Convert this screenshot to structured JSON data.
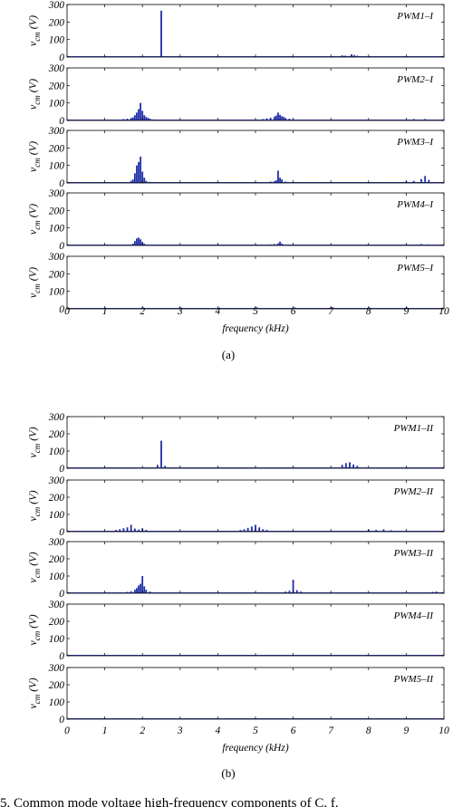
{
  "figure": {
    "caption_a": "(a)",
    "caption_b": "(b)",
    "footer_fragment": "5.   Common mode voltage high-frequency components of C. f."
  },
  "chart_data": [
    {
      "type": "bar",
      "group": "a",
      "xlabel": "frequency (kHz)",
      "xlim": [
        0,
        10
      ],
      "xticks": [
        "0",
        "1",
        "2",
        "3",
        "4",
        "5",
        "6",
        "7",
        "8",
        "9",
        "10"
      ],
      "ylim": [
        0,
        300
      ],
      "yticks": [
        "0",
        "100",
        "200",
        "300"
      ],
      "grid": false,
      "panels": [
        {
          "label": "PWM1–I",
          "ylabel": "v",
          "ylabel_sub": "cm",
          "ylabel_unit": "(V)",
          "x": [
            2.38,
            2.5,
            2.62,
            7.3,
            7.38,
            7.5,
            7.55,
            7.62,
            7.7
          ],
          "values": [
            4,
            265,
            4,
            10,
            8,
            6,
            16,
            12,
            8
          ]
        },
        {
          "label": "PWM2–I",
          "ylabel": "v",
          "ylabel_sub": "cm",
          "ylabel_unit": "(V)",
          "x": [
            1.5,
            1.6,
            1.7,
            1.75,
            1.8,
            1.85,
            1.9,
            1.95,
            2.0,
            2.05,
            2.1,
            2.15,
            2.2,
            2.3,
            5.2,
            5.3,
            5.4,
            5.5,
            5.55,
            5.6,
            5.65,
            5.7,
            5.75,
            5.8,
            5.9,
            6.0,
            9.2,
            9.5
          ],
          "values": [
            8,
            10,
            14,
            18,
            30,
            45,
            65,
            100,
            55,
            30,
            20,
            14,
            10,
            6,
            8,
            12,
            16,
            22,
            28,
            45,
            32,
            24,
            20,
            14,
            10,
            6,
            8,
            8
          ]
        },
        {
          "label": "PWM3–I",
          "ylabel": "v",
          "ylabel_sub": "cm",
          "ylabel_unit": "(V)",
          "x": [
            1.7,
            1.75,
            1.8,
            1.85,
            1.9,
            1.95,
            2.0,
            2.05,
            2.1,
            2.2,
            5.4,
            5.5,
            5.55,
            5.6,
            5.65,
            5.7,
            5.8,
            9.0,
            9.2,
            9.4,
            9.5,
            9.6
          ],
          "values": [
            12,
            20,
            55,
            100,
            120,
            150,
            65,
            30,
            12,
            6,
            8,
            10,
            15,
            70,
            30,
            20,
            8,
            10,
            12,
            22,
            40,
            18
          ]
        },
        {
          "label": "PWM4–I",
          "ylabel": "v",
          "ylabel_sub": "cm",
          "ylabel_unit": "(V)",
          "x": [
            1.75,
            1.8,
            1.85,
            1.9,
            1.95,
            2.0,
            2.05,
            5.4,
            5.5,
            5.6,
            5.65,
            5.7,
            9.4,
            9.6
          ],
          "values": [
            10,
            25,
            40,
            45,
            35,
            20,
            10,
            6,
            8,
            12,
            22,
            10,
            8,
            6
          ]
        },
        {
          "label": "PWM5–I",
          "ylabel": "v",
          "ylabel_sub": "cm",
          "ylabel_unit": "(V)",
          "x": [],
          "values": []
        }
      ]
    },
    {
      "type": "bar",
      "group": "b",
      "xlabel": "frequency (kHz)",
      "xlim": [
        0,
        10
      ],
      "xticks": [
        "0",
        "1",
        "2",
        "3",
        "4",
        "5",
        "6",
        "7",
        "8",
        "9",
        "10"
      ],
      "ylim": [
        0,
        300
      ],
      "yticks": [
        "0",
        "100",
        "200",
        "300"
      ],
      "grid": false,
      "panels": [
        {
          "label": "PWM1–II",
          "ylabel": "v",
          "ylabel_sub": "cm",
          "ylabel_unit": "(V)",
          "x": [
            2.4,
            2.5,
            2.6,
            7.3,
            7.4,
            7.5,
            7.6,
            7.7
          ],
          "values": [
            20,
            160,
            14,
            20,
            30,
            35,
            22,
            14
          ]
        },
        {
          "label": "PWM2–II",
          "ylabel": "v",
          "ylabel_sub": "cm",
          "ylabel_unit": "(V)",
          "x": [
            1.3,
            1.4,
            1.5,
            1.6,
            1.7,
            1.8,
            1.9,
            2.0,
            2.1,
            4.6,
            4.7,
            4.8,
            4.9,
            5.0,
            5.1,
            5.2,
            5.3,
            8.0,
            8.2,
            8.4,
            8.6
          ],
          "values": [
            10,
            14,
            20,
            25,
            40,
            18,
            12,
            20,
            10,
            10,
            14,
            22,
            30,
            40,
            25,
            14,
            10,
            12,
            10,
            14,
            8
          ]
        },
        {
          "label": "PWM3–II",
          "ylabel": "v",
          "ylabel_sub": "cm",
          "ylabel_unit": "(V)",
          "x": [
            1.6,
            1.7,
            1.8,
            1.85,
            1.9,
            1.95,
            2.0,
            2.05,
            2.1,
            2.2,
            5.8,
            5.9,
            6.0,
            6.1,
            6.2,
            9.7,
            9.8
          ],
          "values": [
            8,
            12,
            20,
            30,
            45,
            55,
            100,
            40,
            20,
            10,
            10,
            15,
            78,
            18,
            10,
            8,
            10
          ]
        },
        {
          "label": "PWM4–II",
          "ylabel": "v",
          "ylabel_sub": "cm",
          "ylabel_unit": "(V)",
          "x": [],
          "values": []
        },
        {
          "label": "PWM5–II",
          "ylabel": "v",
          "ylabel_sub": "cm",
          "ylabel_unit": "(V)",
          "x": [],
          "values": []
        }
      ]
    }
  ]
}
